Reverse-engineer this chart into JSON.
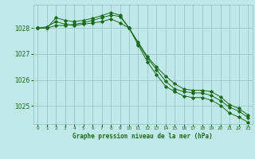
{
  "title": "Graphe pression niveau de la mer (hPa)",
  "bg_color": "#c0e8e8",
  "grid_color": "#90c0c0",
  "line_color": "#1a6b1a",
  "x_labels": [
    "0",
    "1",
    "2",
    "3",
    "4",
    "5",
    "6",
    "7",
    "8",
    "9",
    "10",
    "11",
    "12",
    "13",
    "14",
    "15",
    "16",
    "17",
    "18",
    "19",
    "20",
    "21",
    "22",
    "23"
  ],
  "ylim": [
    1024.3,
    1028.9
  ],
  "yticks": [
    1025,
    1026,
    1027,
    1028
  ],
  "line1": [
    1028.0,
    1028.0,
    1028.1,
    1028.1,
    1028.15,
    1028.2,
    1028.3,
    1028.4,
    1028.5,
    1028.45,
    1028.0,
    1027.45,
    1026.9,
    1026.5,
    1026.15,
    1025.85,
    1025.65,
    1025.6,
    1025.6,
    1025.55,
    1025.35,
    1025.05,
    1024.9,
    1024.65
  ],
  "line2": [
    1028.0,
    1028.05,
    1028.25,
    1028.15,
    1028.1,
    1028.15,
    1028.2,
    1028.25,
    1028.35,
    1028.2,
    1028.0,
    1027.4,
    1026.85,
    1026.4,
    1025.95,
    1025.65,
    1025.55,
    1025.5,
    1025.5,
    1025.4,
    1025.2,
    1024.95,
    1024.8,
    1024.55
  ],
  "line3": [
    1028.0,
    1028.0,
    1028.4,
    1028.3,
    1028.25,
    1028.3,
    1028.38,
    1028.48,
    1028.6,
    1028.5,
    1028.0,
    1027.35,
    1026.7,
    1026.2,
    1025.75,
    1025.55,
    1025.38,
    1025.32,
    1025.32,
    1025.22,
    1025.02,
    1024.72,
    1024.57,
    1024.37
  ]
}
